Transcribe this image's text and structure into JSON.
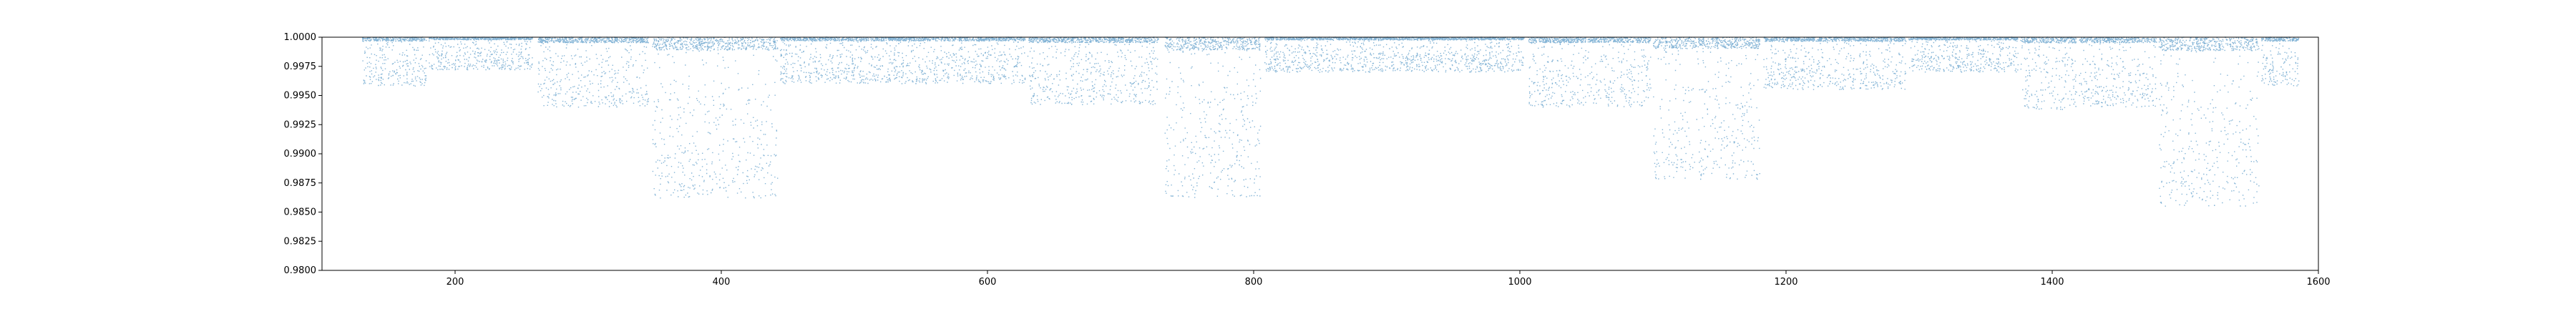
{
  "chart_data": {
    "type": "scatter",
    "title": "",
    "xlabel": "",
    "ylabel": "",
    "xlim": [
      100,
      1600
    ],
    "ylim": [
      0.98,
      1.0
    ],
    "grid": false,
    "legend": "none",
    "marker_color": "#1f77b4",
    "x_ticks": [
      200,
      400,
      600,
      800,
      1000,
      1200,
      1400,
      1600
    ],
    "x_tick_labels": [
      "200",
      "400",
      "600",
      "800",
      "1000",
      "1200",
      "1400",
      "1600"
    ],
    "y_ticks": [
      0.98,
      0.9825,
      0.985,
      0.9875,
      0.99,
      0.9925,
      0.995,
      0.9975,
      1.0
    ],
    "y_tick_labels": [
      "0.9800",
      "0.9825",
      "0.9850",
      "0.9875",
      "0.9900",
      "0.9925",
      "0.9950",
      "0.9975",
      "1.0000"
    ],
    "segments": [
      {
        "x": [
          130,
          178
        ],
        "ymin": 0.9958
      },
      {
        "x": [
          180,
          258
        ],
        "ymin": 0.9972
      },
      {
        "x": [
          262,
          345
        ],
        "ymin": 0.994
      },
      {
        "x": [
          348,
          442
        ],
        "ymin": 0.9862
      },
      {
        "x": [
          444,
          628
        ],
        "ymin": 0.996
      },
      {
        "x": [
          630,
          728
        ],
        "ymin": 0.9942
      },
      {
        "x": [
          733,
          805
        ],
        "ymin": 0.9862
      },
      {
        "x": [
          808,
          1003
        ],
        "ymin": 0.997
      },
      {
        "x": [
          1006,
          1098
        ],
        "ymin": 0.994
      },
      {
        "x": [
          1100,
          1180
        ],
        "ymin": 0.9878
      },
      {
        "x": [
          1183,
          1290
        ],
        "ymin": 0.9955
      },
      {
        "x": [
          1292,
          1374
        ],
        "ymin": 0.997
      },
      {
        "x": [
          1376,
          1418
        ],
        "ymin": 0.9938
      },
      {
        "x": [
          1420,
          1478
        ],
        "ymin": 0.994
      },
      {
        "x": [
          1480,
          1555
        ],
        "ymin": 0.9855
      },
      {
        "x": [
          1557,
          1585
        ],
        "ymin": 0.9958
      }
    ]
  }
}
